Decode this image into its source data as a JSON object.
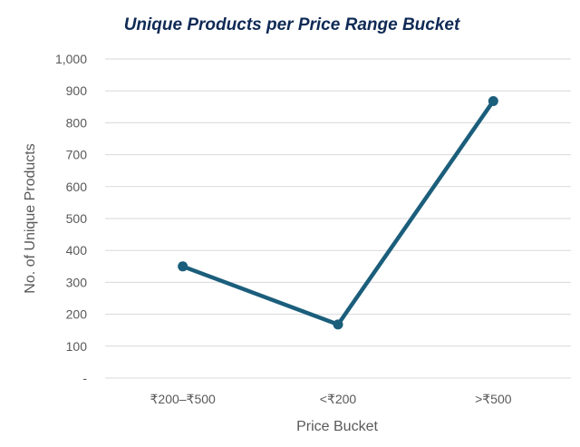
{
  "chart_data": {
    "type": "line",
    "title": "Unique Products per Price Range Bucket",
    "xlabel": "Price Bucket",
    "ylabel": "No. of Unique Products",
    "categories": [
      "₹200–₹500",
      "<₹200",
      ">₹500"
    ],
    "series": [
      {
        "values": [
          350,
          168,
          868
        ]
      }
    ],
    "ylim": [
      0,
      1000
    ],
    "yticks": [
      0,
      100,
      200,
      300,
      400,
      500,
      600,
      700,
      800,
      900,
      1000
    ],
    "ytick_labels": [
      "-",
      "100",
      "200",
      "300",
      "400",
      "500",
      "600",
      "700",
      "800",
      "900",
      "1,000"
    ],
    "grid": true,
    "legend": "none",
    "colors": {
      "line": "#1b5e7b",
      "grid": "#d9d9d9",
      "title": "#0f2a55",
      "text": "#595959"
    }
  }
}
